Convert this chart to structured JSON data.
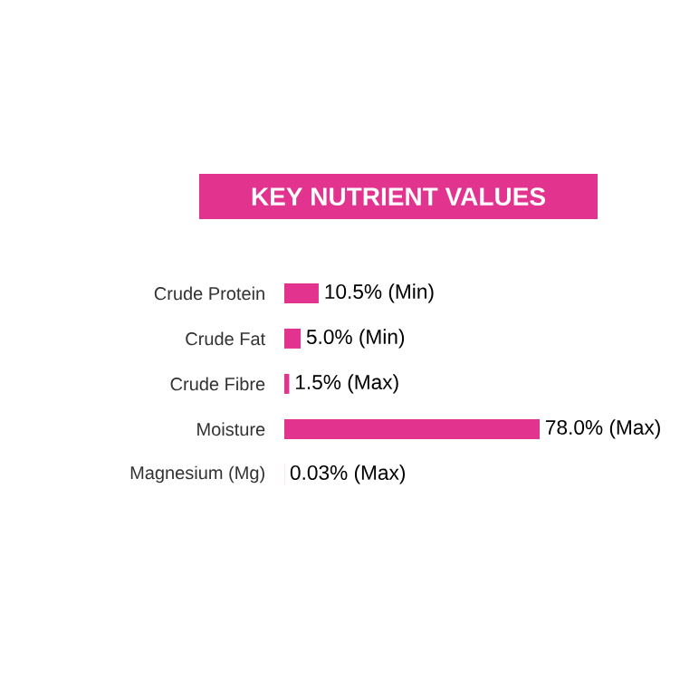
{
  "chart_data": {
    "type": "bar",
    "orientation": "horizontal",
    "title": "KEY NUTRIENT VALUES",
    "categories": [
      "Crude Protein",
      "Crude Fat",
      "Crude Fibre",
      "Moisture",
      "Magnesium (Mg)"
    ],
    "values": [
      10.5,
      5.0,
      1.5,
      78.0,
      0.03
    ],
    "value_labels": [
      "10.5% (Min)",
      "5.0% (Min)",
      "1.5% (Max)",
      "78.0% (Max)",
      "0.03% (Max)"
    ],
    "color": "#e2348f",
    "tick_labels": "y"
  }
}
